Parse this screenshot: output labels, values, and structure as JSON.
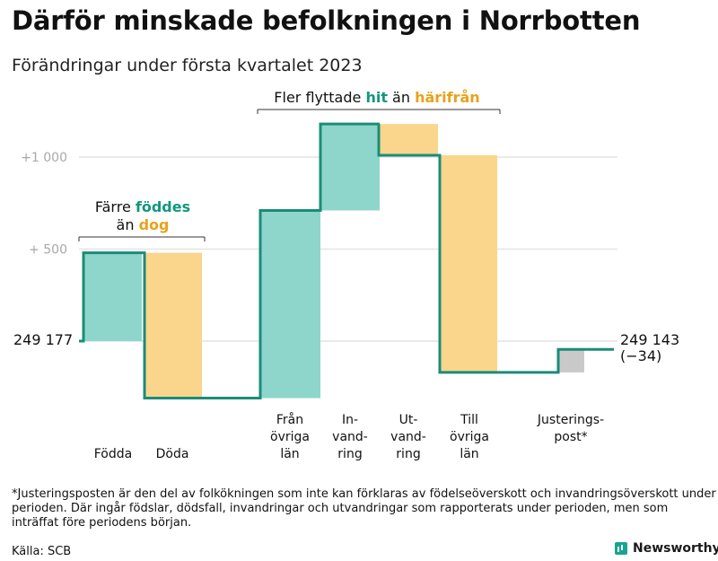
{
  "title": "Därför minskade befolkningen i Norrbotten",
  "subtitle": "Förändringar under första kvartalet 2023",
  "colors": {
    "teal": "#12977f",
    "teal_fill": "#8ed6cb",
    "orange": "#e8a21a",
    "orange_fill": "#fad58c",
    "gray_fill": "#c9c9c9",
    "line": "#1b8c78",
    "grid": "#e4e4e4",
    "tick": "#a8a8a8"
  },
  "annotations": {
    "births_deaths": {
      "line1": "Färre",
      "line1_highlight": "föddes",
      "line2": "än",
      "line2_highlight": "dog"
    },
    "migration": {
      "prefix": "Fler flyttade",
      "hit": "hit",
      "middle": "än",
      "harifran": "härifrån"
    }
  },
  "start_label": "249 177",
  "end_label": "249 143",
  "end_change_label": "(−34)",
  "chart_data": {
    "type": "waterfall",
    "start_value": 249177,
    "end_value": 249143,
    "net_change": -34,
    "y_ticks": [
      {
        "value": 500,
        "label": "+ 500"
      },
      {
        "value": 1000,
        "label": "+1 000"
      }
    ],
    "ylim": [
      -300,
      1200
    ],
    "steps": [
      {
        "category": "Födda",
        "label_lines": [
          "Födda"
        ],
        "delta": 480,
        "kind": "increase"
      },
      {
        "category": "Döda",
        "label_lines": [
          "Döda"
        ],
        "delta": -790,
        "kind": "decrease"
      },
      {
        "category": "Från övriga län",
        "label_lines": [
          "Från",
          "övriga",
          "län"
        ],
        "delta": 1020,
        "kind": "increase"
      },
      {
        "category": "Invandring",
        "label_lines": [
          "In-",
          "vand-",
          "ring"
        ],
        "delta": 470,
        "kind": "increase"
      },
      {
        "category": "Utvandring",
        "label_lines": [
          "Ut-",
          "vand-",
          "ring"
        ],
        "delta": -170,
        "kind": "decrease"
      },
      {
        "category": "Till övriga län",
        "label_lines": [
          "Till",
          "övriga",
          "län"
        ],
        "delta": -1180,
        "kind": "decrease"
      },
      {
        "category": "Justeringspost*",
        "label_lines": [
          "Justerings-",
          "post*"
        ],
        "delta": 125,
        "kind": "adjustment"
      }
    ]
  },
  "footnote": "*Justeringsposten är den del av folkökningen som inte kan förklaras av födelseöverskott och invandringsöverskott under perioden. Där ingår födslar, dödsfall, invandringar och utvandringar som rapporterats under perioden, men som inträffat före periodens början.",
  "source": "Källa: SCB",
  "brand": "Newsworthy"
}
